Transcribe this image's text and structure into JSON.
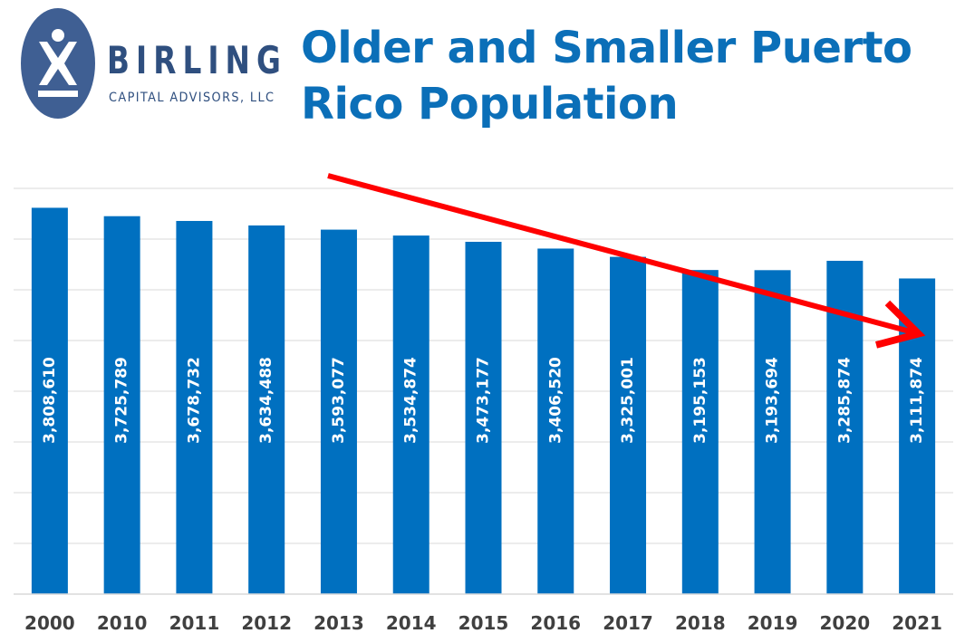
{
  "logo": {
    "wordmark": "BIRLING",
    "tagline": "CAPITAL ADVISORS, LLC"
  },
  "colors": {
    "title": "#0b6fb8",
    "bar": "#0070c0",
    "bar_label": "#ffffff",
    "gridline": "#d9d9d9",
    "trend_arrow": "#ff0000",
    "logo_navy": "#2f4f7f"
  },
  "chart_data": {
    "type": "bar",
    "title": "Older and Smaller Puerto Rico Population",
    "xlabel": "",
    "ylabel": "",
    "categories": [
      "2000",
      "2010",
      "2011",
      "2012",
      "2013",
      "2014",
      "2015",
      "2016",
      "2017",
      "2018",
      "2019",
      "2020",
      "2021"
    ],
    "values": [
      3808610,
      3725789,
      3678732,
      3634488,
      3593077,
      3534874,
      3473177,
      3406520,
      3325001,
      3195153,
      3193694,
      3285874,
      3111874
    ],
    "data_labels": [
      "3,808,610",
      "3,725,789",
      "3,678,732",
      "3,634,488",
      "3,593,077",
      "3,534,874",
      "3,473,177",
      "3,406,520",
      "3,325,001",
      "3,195,153",
      "3,193,694",
      "3,285,874",
      "3,111,874"
    ],
    "ylim": [
      0,
      4000000
    ],
    "grid": true,
    "legend": "none",
    "annotation": "downward-trend-arrow"
  }
}
